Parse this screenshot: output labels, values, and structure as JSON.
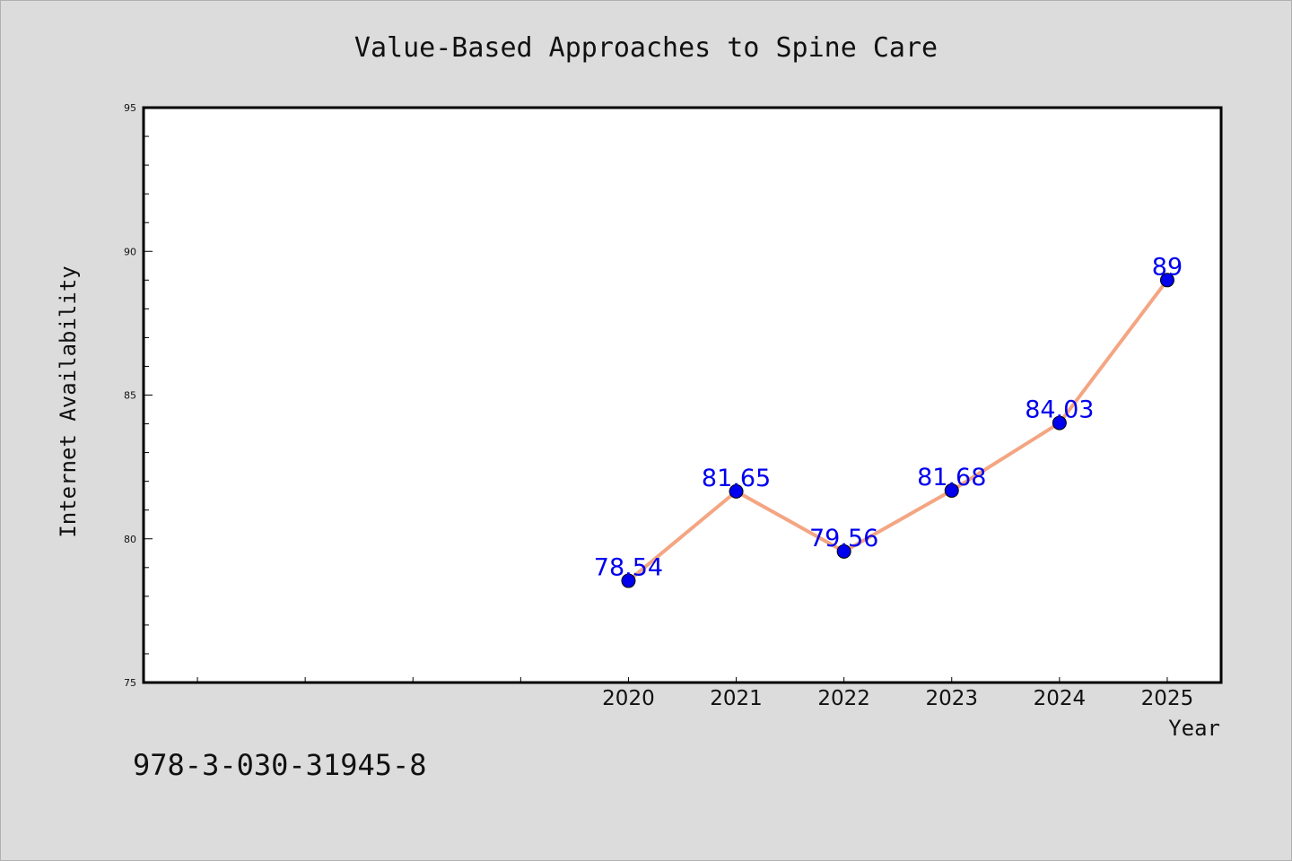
{
  "chart_data": {
    "type": "line",
    "title": "Value-Based Approaches to Spine Care",
    "xlabel": "Year",
    "ylabel": "Internet Availability",
    "x": [
      2020,
      2021,
      2022,
      2023,
      2024,
      2025
    ],
    "x_tick_labels": [
      "2020",
      "2021",
      "2022",
      "2023",
      "2024",
      "2025"
    ],
    "series": [
      {
        "values": [
          78.54,
          81.65,
          79.56,
          81.68,
          84.03,
          89
        ],
        "data_labels": [
          "78.54",
          "81.65",
          "79.56",
          "81.68",
          "84.03",
          "89"
        ],
        "line_color": "#f4a582",
        "marker_color": "#0000ee"
      }
    ],
    "ylim": [
      75,
      95
    ],
    "xlim": [
      2015.5,
      2025.5
    ],
    "y_ticks": [
      75,
      80,
      85,
      90,
      95
    ],
    "y_tick_labels": [
      "75",
      "80",
      "85",
      "90",
      "95"
    ],
    "grid": false,
    "legend": "none"
  },
  "footer": {
    "isbn": "978-3-030-31945-8"
  },
  "colors": {
    "background": "#dcdcdc",
    "plot_background": "#ffffff",
    "line": "#f4a582",
    "marker": "#0000ee",
    "data_label": "#0000ee"
  }
}
